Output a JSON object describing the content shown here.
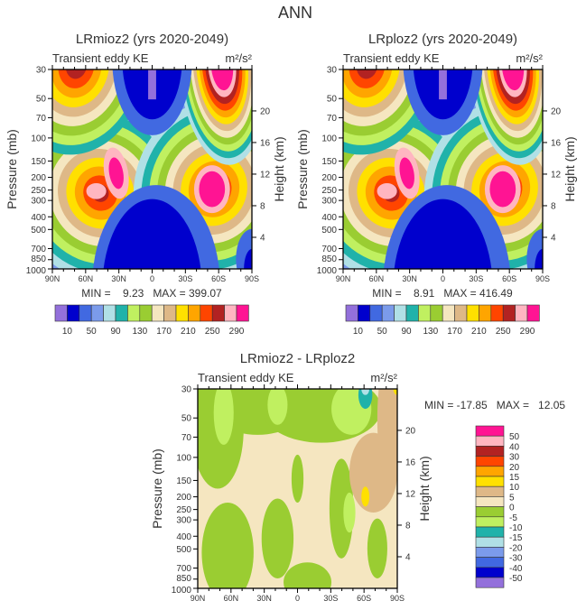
{
  "figure_title": "ANN",
  "palette": [
    "#9370DB",
    "#0000CD",
    "#4169E1",
    "#7B9BEB",
    "#B0E0E6",
    "#20B2AA",
    "#C0F060",
    "#9ACD32",
    "#F5E6C0",
    "#DEB887",
    "#FFE000",
    "#FFA500",
    "#FF4500",
    "#B22222",
    "#FFB6C1",
    "#FF1493"
  ],
  "chart_data": [
    {
      "type": "heatmap",
      "title": "LRmioz2 (yrs 2020-2049)",
      "left_string": "Transient eddy KE",
      "units": "m²/s²",
      "ylabel": "Pressure (mb)",
      "y2label": "Height (km)",
      "xticks": [
        "90N",
        "60N",
        "30N",
        "0",
        "30S",
        "60S",
        "90S"
      ],
      "yticks": [
        "30",
        "50",
        "70",
        "100",
        "150",
        "200",
        "250",
        "300",
        "400",
        "500",
        "700",
        "850",
        "1000"
      ],
      "y2ticks": [
        "4",
        "8",
        "12",
        "16",
        "20"
      ],
      "stats": "MIN =    9.23   MAX = 399.07",
      "min": 9.23,
      "max": 399.07,
      "levels": [
        10,
        30,
        50,
        70,
        90,
        110,
        130,
        150,
        170,
        190,
        210,
        230,
        250,
        270,
        290
      ],
      "colorbar_labels": [
        "10",
        "50",
        "90",
        "130",
        "170",
        "210",
        "250",
        "290"
      ]
    },
    {
      "type": "heatmap",
      "title": "LRploz2 (yrs 2020-2049)",
      "left_string": "Transient eddy KE",
      "units": "m²/s²",
      "ylabel": "Pressure (mb)",
      "y2label": "Height (km)",
      "xticks": [
        "90N",
        "60N",
        "30N",
        "0",
        "30S",
        "60S",
        "90S"
      ],
      "yticks": [
        "30",
        "50",
        "70",
        "100",
        "150",
        "200",
        "250",
        "300",
        "400",
        "500",
        "700",
        "850",
        "1000"
      ],
      "y2ticks": [
        "4",
        "8",
        "12",
        "16",
        "20"
      ],
      "stats": "MIN =    8.91   MAX = 416.49",
      "min": 8.91,
      "max": 416.49,
      "levels": [
        10,
        30,
        50,
        70,
        90,
        110,
        130,
        150,
        170,
        190,
        210,
        230,
        250,
        270,
        290
      ],
      "colorbar_labels": [
        "10",
        "50",
        "90",
        "130",
        "170",
        "210",
        "250",
        "290"
      ]
    },
    {
      "type": "heatmap",
      "title": "LRmioz2 - LRploz2",
      "left_string": "Transient eddy KE",
      "units": "m²/s²",
      "ylabel": "Pressure (mb)",
      "y2label": "Height (km)",
      "xticks": [
        "90N",
        "60N",
        "30N",
        "0",
        "30S",
        "60S",
        "90S"
      ],
      "yticks": [
        "30",
        "50",
        "70",
        "100",
        "150",
        "200",
        "250",
        "300",
        "400",
        "500",
        "700",
        "850",
        "1000"
      ],
      "y2ticks": [
        "4",
        "8",
        "12",
        "16",
        "20"
      ],
      "stats": "MIN = -17.85   MAX =   12.05",
      "min": -17.85,
      "max": 12.05,
      "levels": [
        -50,
        -40,
        -30,
        -20,
        -15,
        -10,
        -5,
        0,
        5,
        10,
        15,
        20,
        30,
        40,
        50
      ],
      "colorbar_labels": [
        "50",
        "40",
        "30",
        "20",
        "15",
        "10",
        "5",
        "0",
        "-5",
        "-10",
        "-15",
        "-20",
        "-30",
        "-40",
        "-50"
      ]
    }
  ]
}
